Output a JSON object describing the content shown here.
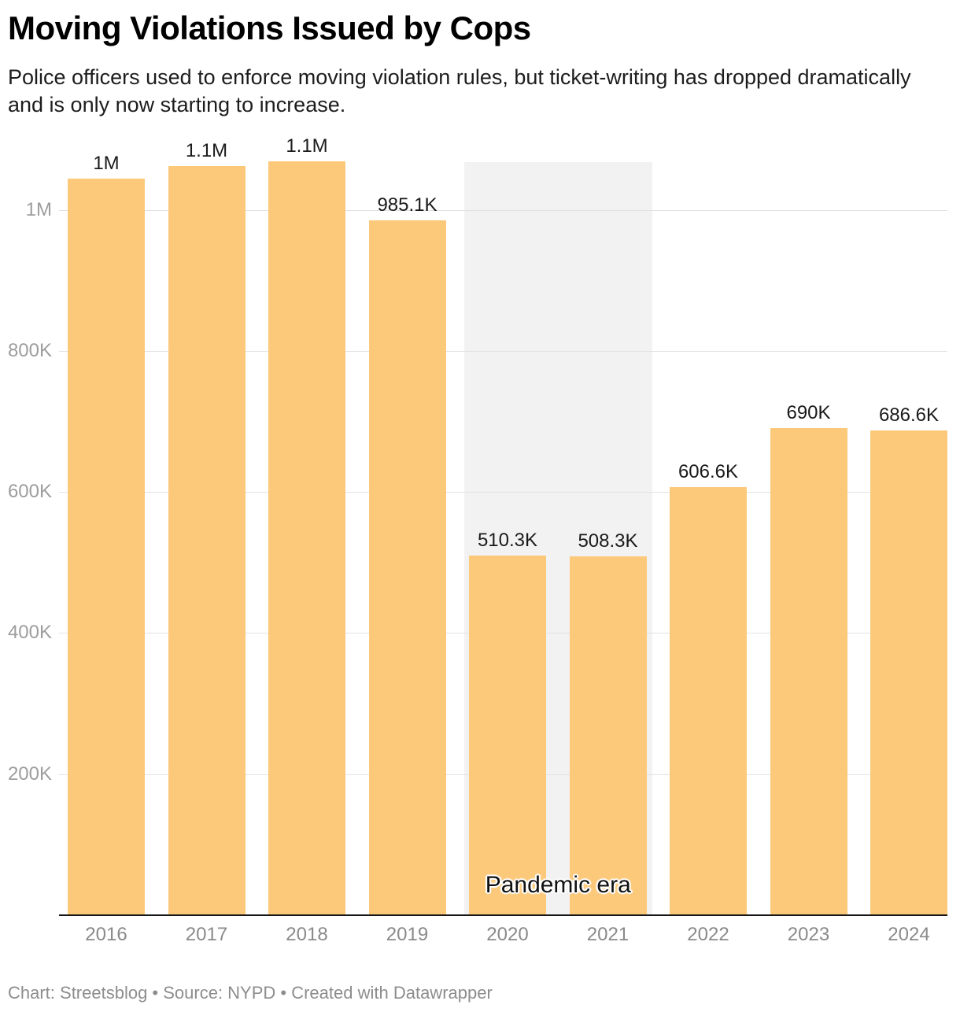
{
  "header": {
    "title": "Moving Violations Issued by Cops",
    "subtitle": "Police officers used to enforce moving violation rules, but ticket-writing has dropped dramatically and is only now starting to increase."
  },
  "chart_data": {
    "type": "bar",
    "title": "Moving Violations Issued by Cops",
    "categories": [
      "2016",
      "2017",
      "2018",
      "2019",
      "2020",
      "2021",
      "2022",
      "2023",
      "2024"
    ],
    "values": [
      1044000,
      1062000,
      1069000,
      985100,
      510300,
      508300,
      606600,
      690000,
      686600
    ],
    "value_labels": [
      "1M",
      "1.1M",
      "1.1M",
      "985.1K",
      "510.3K",
      "508.3K",
      "606.6K",
      "690K",
      "686.6K"
    ],
    "yticks": [
      {
        "label": "200K",
        "value": 200000
      },
      {
        "label": "400K",
        "value": 400000
      },
      {
        "label": "600K",
        "value": 600000
      },
      {
        "label": "800K",
        "value": 800000
      },
      {
        "label": "1M",
        "value": 1000000
      }
    ],
    "ylim": [
      0,
      1070000
    ],
    "grid": true,
    "legend": "none",
    "xlabel": "",
    "ylabel": "",
    "bar_color": "#fcc97b",
    "highlight_region": {
      "label": "Pandemic era",
      "categories": [
        "2020",
        "2021"
      ],
      "color": "#f2f2f2"
    }
  },
  "footer": {
    "text": "Chart: Streetsblog • Source: NYPD • Created with Datawrapper"
  },
  "colors": {
    "bar": "#fcc97b",
    "highlight": "#f2f2f2",
    "gridline": "#e2e2e2",
    "axis_line": "#161616",
    "ytick_text": "#9d9d9d",
    "xtick_text": "#8a8a8a",
    "value_label_text": "#1a1a1a",
    "title_text": "#000000",
    "subtitle_text": "#1d1d1d",
    "footer_text": "#8d8d8d"
  }
}
